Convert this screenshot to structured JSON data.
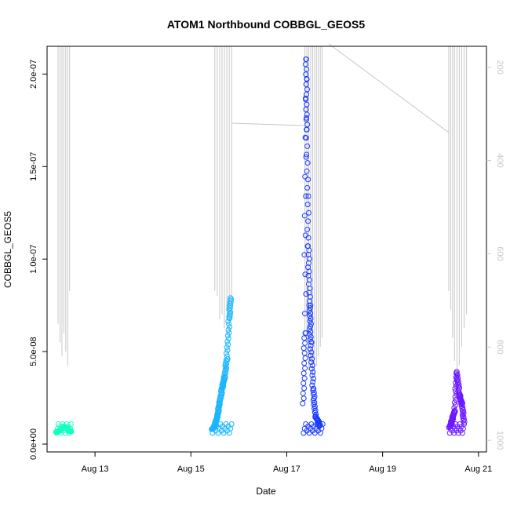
{
  "chart_data": {
    "type": "scatter",
    "title": "ATOM1 Northbound COBBGL_GEOS5",
    "xlabel": "Date",
    "ylabel": "COBBGL_GEOS5",
    "x_ticks": [
      "Aug 13",
      "Aug 15",
      "Aug 17",
      "Aug 19",
      "Aug 21"
    ],
    "x_range": [
      "Aug 12 00:00",
      "Aug 21 04:00"
    ],
    "y_ticks": [
      "0.0e+00",
      "5.0e-08",
      "1.0e-07",
      "1.5e-07",
      "2.0e-07"
    ],
    "ylim": [
      0,
      2.15e-07
    ],
    "y2_ticks": [
      "200",
      "400",
      "600",
      "800",
      "1000"
    ],
    "y2lim_reversed": [
      1025,
      155
    ],
    "grid": false,
    "legend": "none",
    "secondary_color": "#c8c8c8",
    "series": [
      {
        "color": "#1affc3",
        "x_start_day": 12.2,
        "x_end_day": 12.5,
        "points": [
          [
            12.2,
            6.5e-09
          ],
          [
            12.25,
            7.2e-09
          ],
          [
            12.3,
            8e-09
          ],
          [
            12.35,
            9.5e-09
          ],
          [
            12.4,
            8.8e-09
          ],
          [
            12.45,
            7.6e-09
          ],
          [
            12.5,
            6.8e-09
          ]
        ]
      },
      {
        "color": "#1ab5ff",
        "x_start_day": 15.45,
        "x_end_day": 15.85,
        "points": [
          [
            15.45,
            8e-09
          ],
          [
            15.5,
            1e-08
          ],
          [
            15.55,
            1.5e-08
          ],
          [
            15.6,
            2.2e-08
          ],
          [
            15.65,
            3e-08
          ],
          [
            15.7,
            3.6e-08
          ],
          [
            15.75,
            4.6e-08
          ],
          [
            15.8,
            6.8e-08
          ],
          [
            15.83,
            7.9e-08
          ]
        ]
      },
      {
        "color": "#1a3bff",
        "x_start_day": 17.35,
        "x_end_day": 17.75,
        "points": [
          [
            17.35,
            2.2e-08
          ],
          [
            17.38,
            6e-08
          ],
          [
            17.4,
            2.08e-07
          ],
          [
            17.42,
            1.7e-07
          ],
          [
            17.45,
            1.07e-07
          ],
          [
            17.48,
            7.5e-08
          ],
          [
            17.5,
            5.5e-08
          ],
          [
            17.55,
            3e-08
          ],
          [
            17.6,
            1.5e-08
          ],
          [
            17.7,
            1e-08
          ]
        ]
      },
      {
        "color": "#6b1aff",
        "x_start_day": 20.4,
        "x_end_day": 20.7,
        "points": [
          [
            20.4,
            9e-09
          ],
          [
            20.45,
            1.3e-08
          ],
          [
            20.5,
            1.8e-08
          ],
          [
            20.55,
            3.9e-08
          ],
          [
            20.6,
            2.7e-08
          ],
          [
            20.65,
            2.2e-08
          ],
          [
            20.7,
            1.2e-08
          ]
        ]
      }
    ]
  }
}
